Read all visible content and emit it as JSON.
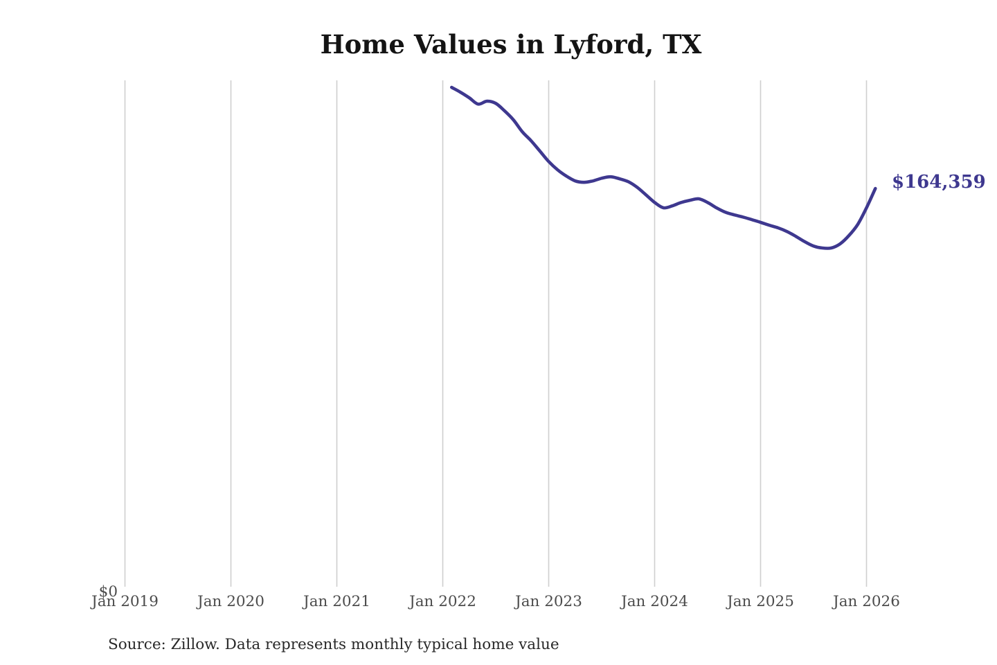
{
  "chart": {
    "title": "Home Values in Lyford, TX",
    "source_note": "Source: Zillow. Data represents monthly typical home value",
    "y_zero_label": "$0",
    "end_value_label": "$164,359",
    "colors": {
      "line": "#3e388f",
      "end_label": "#3e388f",
      "gridline": "#cfcfcf",
      "tick_text": "#4c4c4c",
      "title_text": "#141414",
      "source_text": "#282828",
      "background": "#ffffff"
    }
  },
  "chart_data": {
    "type": "line",
    "title": "Home Values in Lyford, TX",
    "xlabel": "",
    "ylabel": "",
    "legend": null,
    "grid": "vertical-only",
    "x_tick_labels": [
      "Jan 2019",
      "Jan 2020",
      "Jan 2021",
      "Jan 2022",
      "Jan 2023",
      "Jan 2024",
      "Jan 2025",
      "Jan 2026"
    ],
    "y_tick_labels": [
      "$0"
    ],
    "ylim": [
      0,
      209000
    ],
    "series_name": "Monthly typical home value (USD)",
    "annotation": {
      "text": "$164,359",
      "attached_to": "last-point"
    },
    "months": [
      "Feb 2022",
      "Mar 2022",
      "Apr 2022",
      "May 2022",
      "Jun 2022",
      "Jul 2022",
      "Aug 2022",
      "Sep 2022",
      "Oct 2022",
      "Nov 2022",
      "Dec 2022",
      "Jan 2023",
      "Feb 2023",
      "Mar 2023",
      "Apr 2023",
      "May 2023",
      "Jun 2023",
      "Jul 2023",
      "Aug 2023",
      "Sep 2023",
      "Oct 2023",
      "Nov 2023",
      "Dec 2023",
      "Jan 2024",
      "Feb 2024",
      "Mar 2024",
      "Apr 2024",
      "May 2024",
      "Jun 2024",
      "Jul 2024",
      "Aug 2024",
      "Sep 2024",
      "Oct 2024",
      "Nov 2024",
      "Dec 2024",
      "Jan 2025",
      "Feb 2025",
      "Mar 2025",
      "Apr 2025",
      "May 2025",
      "Jun 2025",
      "Jul 2025",
      "Aug 2025",
      "Sep 2025",
      "Oct 2025",
      "Nov 2025",
      "Dec 2025",
      "Jan 2026",
      "Feb 2026"
    ],
    "values": [
      206100,
      204100,
      201800,
      199200,
      200400,
      199500,
      196400,
      192700,
      187800,
      184100,
      179800,
      175500,
      172100,
      169500,
      167500,
      166900,
      167500,
      168600,
      169200,
      168400,
      167200,
      164900,
      161800,
      158600,
      156400,
      157200,
      158600,
      159500,
      160100,
      158600,
      156400,
      154600,
      153500,
      152600,
      151500,
      150400,
      149200,
      148100,
      146600,
      144600,
      142400,
      140600,
      139800,
      139800,
      141500,
      144900,
      149500,
      156400,
      164359
    ]
  }
}
